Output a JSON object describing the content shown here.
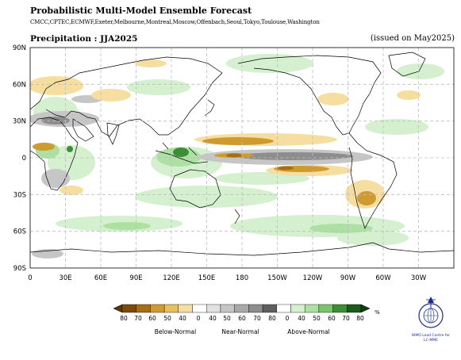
{
  "header": {
    "title": "Probabilistic Multi-Model Ensemble Forecast",
    "centres": "CMCC,CPTEC,ECMWF,Exeter,Melbourne,Montreal,Moscow,Offenbach,Seoul,Tokyo,Toulouse,Washington",
    "subtitle": "Precipitation : JJA2025",
    "issued": "(issued on May2025)"
  },
  "map": {
    "lat_labels": [
      "90N",
      "60N",
      "30N",
      "0",
      "30S",
      "60S",
      "90S"
    ],
    "lon_labels": [
      "0",
      "30E",
      "60E",
      "90E",
      "120E",
      "150E",
      "180",
      "150W",
      "120W",
      "90W",
      "60W",
      "30W"
    ],
    "grid": "dashed",
    "projection": "equirectangular, 0–360 longitude"
  },
  "legend": {
    "ticks_below": [
      "80",
      "70",
      "60",
      "50",
      "40"
    ],
    "ticks_near": [
      "0",
      "40",
      "50",
      "60",
      "70",
      "80"
    ],
    "ticks_above": [
      "0",
      "40",
      "50",
      "60",
      "70",
      "80"
    ],
    "unit": "%",
    "label_below": "Below-Normal",
    "label_near": "Near-Normal",
    "label_above": "Above-Normal",
    "colors_below": [
      "#7a4c0a",
      "#a66d14",
      "#cf9a2e",
      "#e8be5e",
      "#f6dea1"
    ],
    "colors_near": [
      "#ffffff",
      "#e2e2e2",
      "#c6c6c6",
      "#a9a9a9",
      "#8d8d8d",
      "#5e5e5e"
    ],
    "colors_above": [
      "#ffffff",
      "#d4f0cf",
      "#aee0a3",
      "#7cc46c",
      "#3c8f35",
      "#1c5a1c"
    ]
  },
  "logo": {
    "text_line1": "WMO Lead Centre for",
    "text_line2": "LC-MME"
  }
}
